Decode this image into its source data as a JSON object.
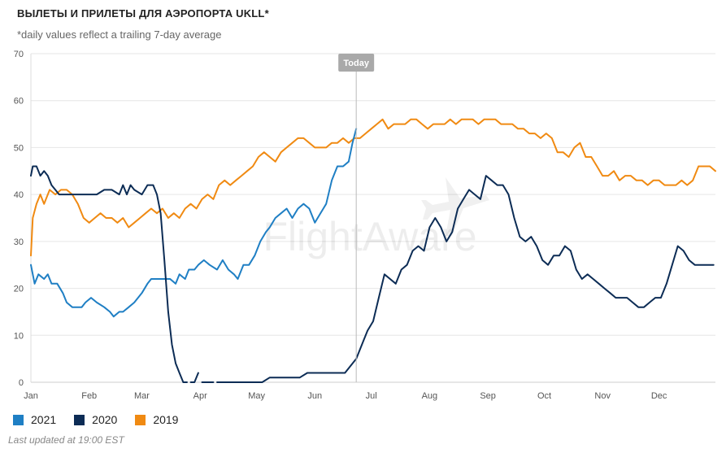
{
  "title": "ВЫЛЕТЫ И ПРИЛЕТЫ ДЛЯ АЭРОПОРТА UKLL*",
  "subtitle": "*daily values reflect a trailing 7-day average",
  "footer": "Last updated at 19:00 EST",
  "watermark": "FlightAware",
  "today_label": "Today",
  "colors": {
    "2021": "#1f7fc4",
    "2020": "#0c2c55",
    "2019": "#f08a12"
  },
  "chart_data": {
    "type": "line",
    "title": "ВЫЛЕТЫ И ПРИЛЕТЫ ДЛЯ АЭРОПОРТА UKLL*",
    "subtitle": "*daily values reflect a trailing 7-day average",
    "x_unit": "day of year",
    "xlim": [
      1,
      365
    ],
    "ylim": [
      0,
      70
    ],
    "yticks": [
      0,
      10,
      20,
      30,
      40,
      50,
      60,
      70
    ],
    "month_labels": [
      "Jan",
      "Feb",
      "Mar",
      "Apr",
      "May",
      "Jun",
      "Jul",
      "Aug",
      "Sep",
      "Oct",
      "Nov",
      "Dec"
    ],
    "month_label_days": [
      1,
      32,
      60,
      91,
      121,
      152,
      182,
      213,
      244,
      274,
      305,
      335
    ],
    "today_day": 174,
    "grid": true,
    "legend_position": "bottom-left",
    "series": [
      {
        "name": "2021",
        "x": [
          1,
          3,
          5,
          8,
          10,
          12,
          15,
          18,
          20,
          23,
          25,
          28,
          30,
          33,
          36,
          40,
          43,
          45,
          48,
          50,
          53,
          56,
          60,
          63,
          65,
          70,
          75,
          78,
          80,
          83,
          85,
          88,
          90,
          93,
          96,
          100,
          103,
          106,
          109,
          111,
          114,
          117,
          120,
          123,
          126,
          128,
          131,
          134,
          137,
          140,
          143,
          146,
          149,
          152,
          155,
          158,
          161,
          164,
          167,
          170,
          172,
          174
        ],
        "values": [
          25,
          21,
          23,
          22,
          23,
          21,
          21,
          19,
          17,
          16,
          16,
          16,
          17,
          18,
          17,
          16,
          15,
          14,
          15,
          15,
          16,
          17,
          19,
          21,
          22,
          22,
          22,
          21,
          23,
          22,
          24,
          24,
          25,
          26,
          25,
          24,
          26,
          24,
          23,
          22,
          25,
          25,
          27,
          30,
          32,
          33,
          35,
          36,
          37,
          35,
          37,
          38,
          37,
          34,
          36,
          38,
          43,
          46,
          46,
          47,
          51,
          54
        ]
      },
      {
        "name": "2020",
        "x": [
          1,
          2,
          4,
          6,
          8,
          10,
          12,
          14,
          16,
          20,
          24,
          28,
          32,
          36,
          40,
          44,
          48,
          50,
          52,
          54,
          56,
          60,
          63,
          66,
          68,
          70,
          72,
          74,
          76,
          78,
          80,
          82,
          84,
          86,
          88,
          90,
          92,
          95,
          98,
          100,
          103,
          106,
          108,
          112,
          116,
          120,
          124,
          128,
          132,
          136,
          140,
          144,
          148,
          152,
          156,
          160,
          164,
          168,
          170,
          172,
          174,
          176,
          178,
          180,
          183,
          186,
          189,
          192,
          195,
          198,
          201,
          204,
          207,
          210,
          213,
          216,
          219,
          222,
          225,
          228,
          231,
          234,
          237,
          240,
          243,
          246,
          249,
          252,
          255,
          258,
          261,
          264,
          267,
          270,
          273,
          276,
          279,
          282,
          285,
          288,
          291,
          294,
          297,
          300,
          303,
          306,
          309,
          312,
          315,
          318,
          321,
          324,
          327,
          330,
          333,
          336,
          339,
          342,
          345,
          348,
          351,
          354,
          357,
          360,
          362,
          364
        ],
        "values": [
          44,
          46,
          46,
          44,
          45,
          44,
          42,
          41,
          40,
          40,
          40,
          40,
          40,
          40,
          41,
          41,
          40,
          42,
          40,
          42,
          41,
          40,
          42,
          42,
          40,
          36,
          26,
          15,
          8,
          4,
          2,
          0,
          0,
          0,
          0,
          2,
          0,
          0,
          0,
          0,
          0,
          0,
          0,
          0,
          0,
          0,
          0,
          1,
          1,
          1,
          1,
          1,
          2,
          2,
          2,
          2,
          2,
          2,
          3,
          4,
          5,
          7,
          9,
          11,
          13,
          18,
          23,
          22,
          21,
          24,
          25,
          28,
          29,
          28,
          33,
          35,
          33,
          30,
          32,
          37,
          39,
          41,
          40,
          39,
          44,
          43,
          42,
          42,
          40,
          35,
          31,
          30,
          31,
          29,
          26,
          25,
          27,
          27,
          29,
          28,
          24,
          22,
          23,
          22,
          21,
          20,
          19,
          18,
          18,
          18,
          17,
          16,
          16,
          17,
          18,
          18,
          21,
          25,
          29,
          28,
          26,
          25,
          25,
          25,
          25,
          25
        ],
        "breaks_after_day": [
          85,
          91,
          98
        ]
      },
      {
        "name": "2019",
        "x": [
          1,
          2,
          4,
          6,
          8,
          11,
          14,
          17,
          20,
          23,
          26,
          29,
          32,
          35,
          38,
          41,
          44,
          47,
          50,
          53,
          56,
          59,
          62,
          65,
          68,
          71,
          74,
          77,
          80,
          83,
          86,
          89,
          92,
          95,
          98,
          101,
          104,
          107,
          110,
          113,
          116,
          119,
          122,
          125,
          128,
          131,
          134,
          137,
          140,
          143,
          146,
          149,
          152,
          155,
          158,
          161,
          164,
          167,
          170,
          173,
          176,
          179,
          182,
          185,
          188,
          191,
          194,
          197,
          200,
          203,
          206,
          209,
          212,
          215,
          218,
          221,
          224,
          227,
          230,
          233,
          236,
          239,
          242,
          245,
          248,
          251,
          254,
          257,
          260,
          263,
          266,
          269,
          272,
          275,
          278,
          281,
          284,
          287,
          290,
          293,
          296,
          299,
          302,
          305,
          308,
          311,
          314,
          317,
          320,
          323,
          326,
          329,
          332,
          335,
          338,
          341,
          344,
          347,
          350,
          353,
          356,
          359,
          362,
          365
        ],
        "values": [
          27,
          35,
          38,
          40,
          38,
          41,
          40,
          41,
          41,
          40,
          38,
          35,
          34,
          35,
          36,
          35,
          35,
          34,
          35,
          33,
          34,
          35,
          36,
          37,
          36,
          37,
          35,
          36,
          35,
          37,
          38,
          37,
          39,
          40,
          39,
          42,
          43,
          42,
          43,
          44,
          45,
          46,
          48,
          49,
          48,
          47,
          49,
          50,
          51,
          52,
          52,
          51,
          50,
          50,
          50,
          51,
          51,
          52,
          51,
          52,
          52,
          53,
          54,
          55,
          56,
          54,
          55,
          55,
          55,
          56,
          56,
          55,
          54,
          55,
          55,
          55,
          56,
          55,
          56,
          56,
          56,
          55,
          56,
          56,
          56,
          55,
          55,
          55,
          54,
          54,
          53,
          53,
          52,
          53,
          52,
          49,
          49,
          48,
          50,
          51,
          48,
          48,
          46,
          44,
          44,
          45,
          43,
          44,
          44,
          43,
          43,
          42,
          43,
          43,
          42,
          42,
          42,
          43,
          42,
          43,
          46,
          46,
          46,
          45
        ]
      }
    ]
  }
}
